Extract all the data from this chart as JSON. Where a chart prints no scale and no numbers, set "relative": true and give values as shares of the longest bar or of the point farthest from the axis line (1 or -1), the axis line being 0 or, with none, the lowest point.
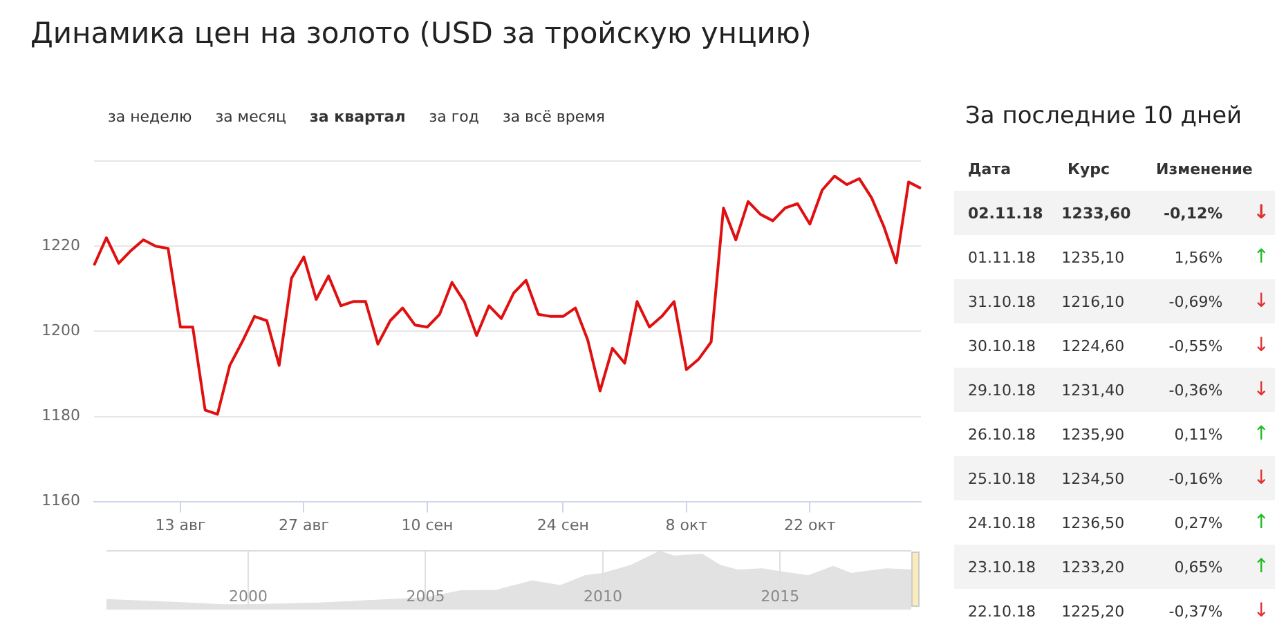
{
  "chart_data": [
    {
      "type": "line",
      "title": "Динамика цен на золото (USD за тройскую унцию)",
      "annotations": [
        "за неделю",
        "за месяц",
        "за квартал",
        "за год",
        "за всё время"
      ],
      "categories": [
        null,
        null,
        null,
        null,
        null,
        null,
        null,
        "13 авг",
        null,
        null,
        null,
        null,
        null,
        null,
        null,
        null,
        null,
        "27 авг",
        null,
        null,
        null,
        null,
        null,
        null,
        null,
        null,
        null,
        "10 сен",
        null,
        null,
        null,
        null,
        null,
        null,
        null,
        null,
        null,
        null,
        "24 сен",
        null,
        null,
        null,
        null,
        null,
        null,
        null,
        null,
        null,
        "8 окт",
        null,
        null,
        null,
        null,
        null,
        null,
        null,
        null,
        null,
        "22 окт",
        null,
        null,
        null,
        null,
        null,
        null,
        null,
        null,
        null
      ],
      "series": [
        {
          "color": "#e01010",
          "values": [
            1215.5,
            1222,
            1216,
            1219,
            1221.5,
            1220,
            1219.5,
            1201,
            1201,
            1181.5,
            1180.5,
            1192,
            1197.5,
            1203.5,
            1202.5,
            1192,
            1212.5,
            1217.5,
            1207.5,
            1213,
            1206,
            1207,
            1207,
            1197,
            1202.5,
            1205.5,
            1201.5,
            1201,
            1204,
            1211.5,
            1207,
            1199,
            1206,
            1203,
            1209,
            1212,
            1204,
            1203.5,
            1203.5,
            1205.5,
            1198,
            1186,
            1196,
            1192.5,
            1207,
            1201,
            1203.5,
            1207,
            1191,
            1193.5,
            1197.5,
            1229,
            1221.5,
            1230.5,
            1227.5,
            1226,
            1229,
            1230,
            1225.2,
            1233.2,
            1236.5,
            1234.5,
            1235.9,
            1231.4,
            1224.6,
            1216.1,
            1235.1,
            1233.6
          ]
        }
      ],
      "ylim": [
        1160,
        1240
      ],
      "yticks": [
        1160,
        1180,
        1200,
        1220,
        {
          "value": 1240,
          "label": null
        }
      ],
      "grid": "y"
    },
    {
      "type": "other",
      "title": "За последние 10 дней",
      "annotations": [
        "Дата",
        "Курс",
        "Изменение",
        "02.11.18",
        "1233,60",
        "-0,12%",
        "↓",
        "01.11.18",
        "1235,10",
        "1,56%",
        "↑",
        "31.10.18",
        "1216,10",
        "-0,69%",
        "↓",
        "30.10.18",
        "1224,60",
        "-0,55%",
        "↓",
        "29.10.18",
        "1231,40",
        "-0,36%",
        "↓",
        "26.10.18",
        "1235,90",
        "0,11%",
        "↑",
        "25.10.18",
        "1234,50",
        "-0,16%",
        "↓",
        "24.10.18",
        "1236,50",
        "0,27%",
        "↑",
        "23.10.18",
        "1233,20",
        "0,65%",
        "↑",
        "22.10.18",
        "1225,20",
        "-0,37%",
        "↓"
      ],
      "colors": [
        "#e03030",
        "#22bb22",
        "#e03030",
        "#e03030",
        "#e03030",
        "#22bb22",
        "#e03030",
        "#22bb22",
        "#22bb22",
        "#e03030"
      ]
    },
    {
      "type": "area",
      "relative": true,
      "x": [
        1996,
        1998,
        1999.3,
        2000,
        2002,
        2004,
        2005,
        2006,
        2007,
        2008,
        2008.8,
        2009.5,
        2010,
        2010.8,
        2011.6,
        2012,
        2012.8,
        2013.3,
        2013.8,
        2014.5,
        2015,
        2015.8,
        2016.5,
        2017,
        2018,
        2018.7
      ],
      "series": [
        {
          "color": "#e2e2e2",
          "values": [
            0.17,
            0.12,
            0.08,
            0.08,
            0.11,
            0.17,
            0.2,
            0.32,
            0.33,
            0.49,
            0.41,
            0.58,
            0.62,
            0.76,
            1,
            0.92,
            0.95,
            0.76,
            0.68,
            0.7,
            0.65,
            0.58,
            0.74,
            0.62,
            0.7,
            0.68
          ]
        }
      ],
      "xlim": [
        1996,
        2018.7
      ],
      "xticks": [
        2000,
        2005,
        2010,
        2015
      ],
      "grid": "x"
    }
  ]
}
